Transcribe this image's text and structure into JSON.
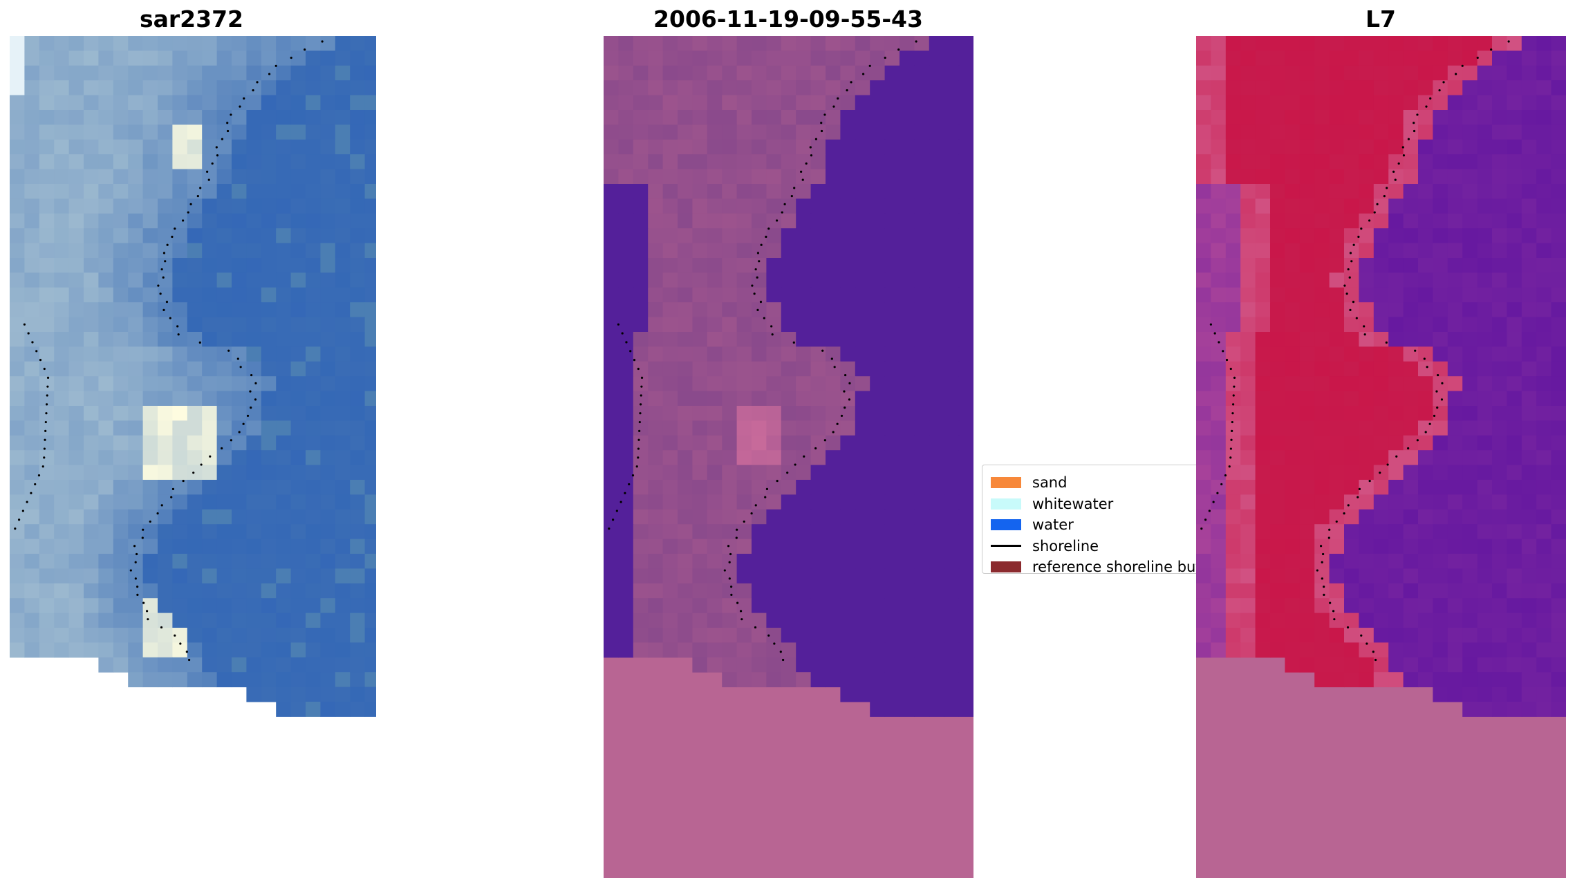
{
  "panels": [
    {
      "title": "sar2372"
    },
    {
      "title": "2006-11-19-09-55-43"
    },
    {
      "title": "L7"
    }
  ],
  "legend": {
    "items": [
      {
        "label": "sand",
        "color": "#f7883a"
      },
      {
        "label": "whitewater",
        "color": "#c8fafa"
      },
      {
        "label": "water",
        "color": "#1464ef"
      },
      {
        "label": "shoreline",
        "color": "#000000"
      },
      {
        "label": "reference shoreline buffer",
        "color": "#8b2a2e"
      }
    ]
  },
  "colors": {
    "rgb_water": "#3b6db5",
    "rgb_land": "#9bb8cf",
    "rgb_bright": "#fffde0",
    "ndwi_water": "#54209a",
    "ndwi_land": "#8a4a8c",
    "ndwi_nodata": "#b86593",
    "cls_land": "#c9174a",
    "cls_water": "#7322a0",
    "cls_nodata": "#b86593"
  }
}
